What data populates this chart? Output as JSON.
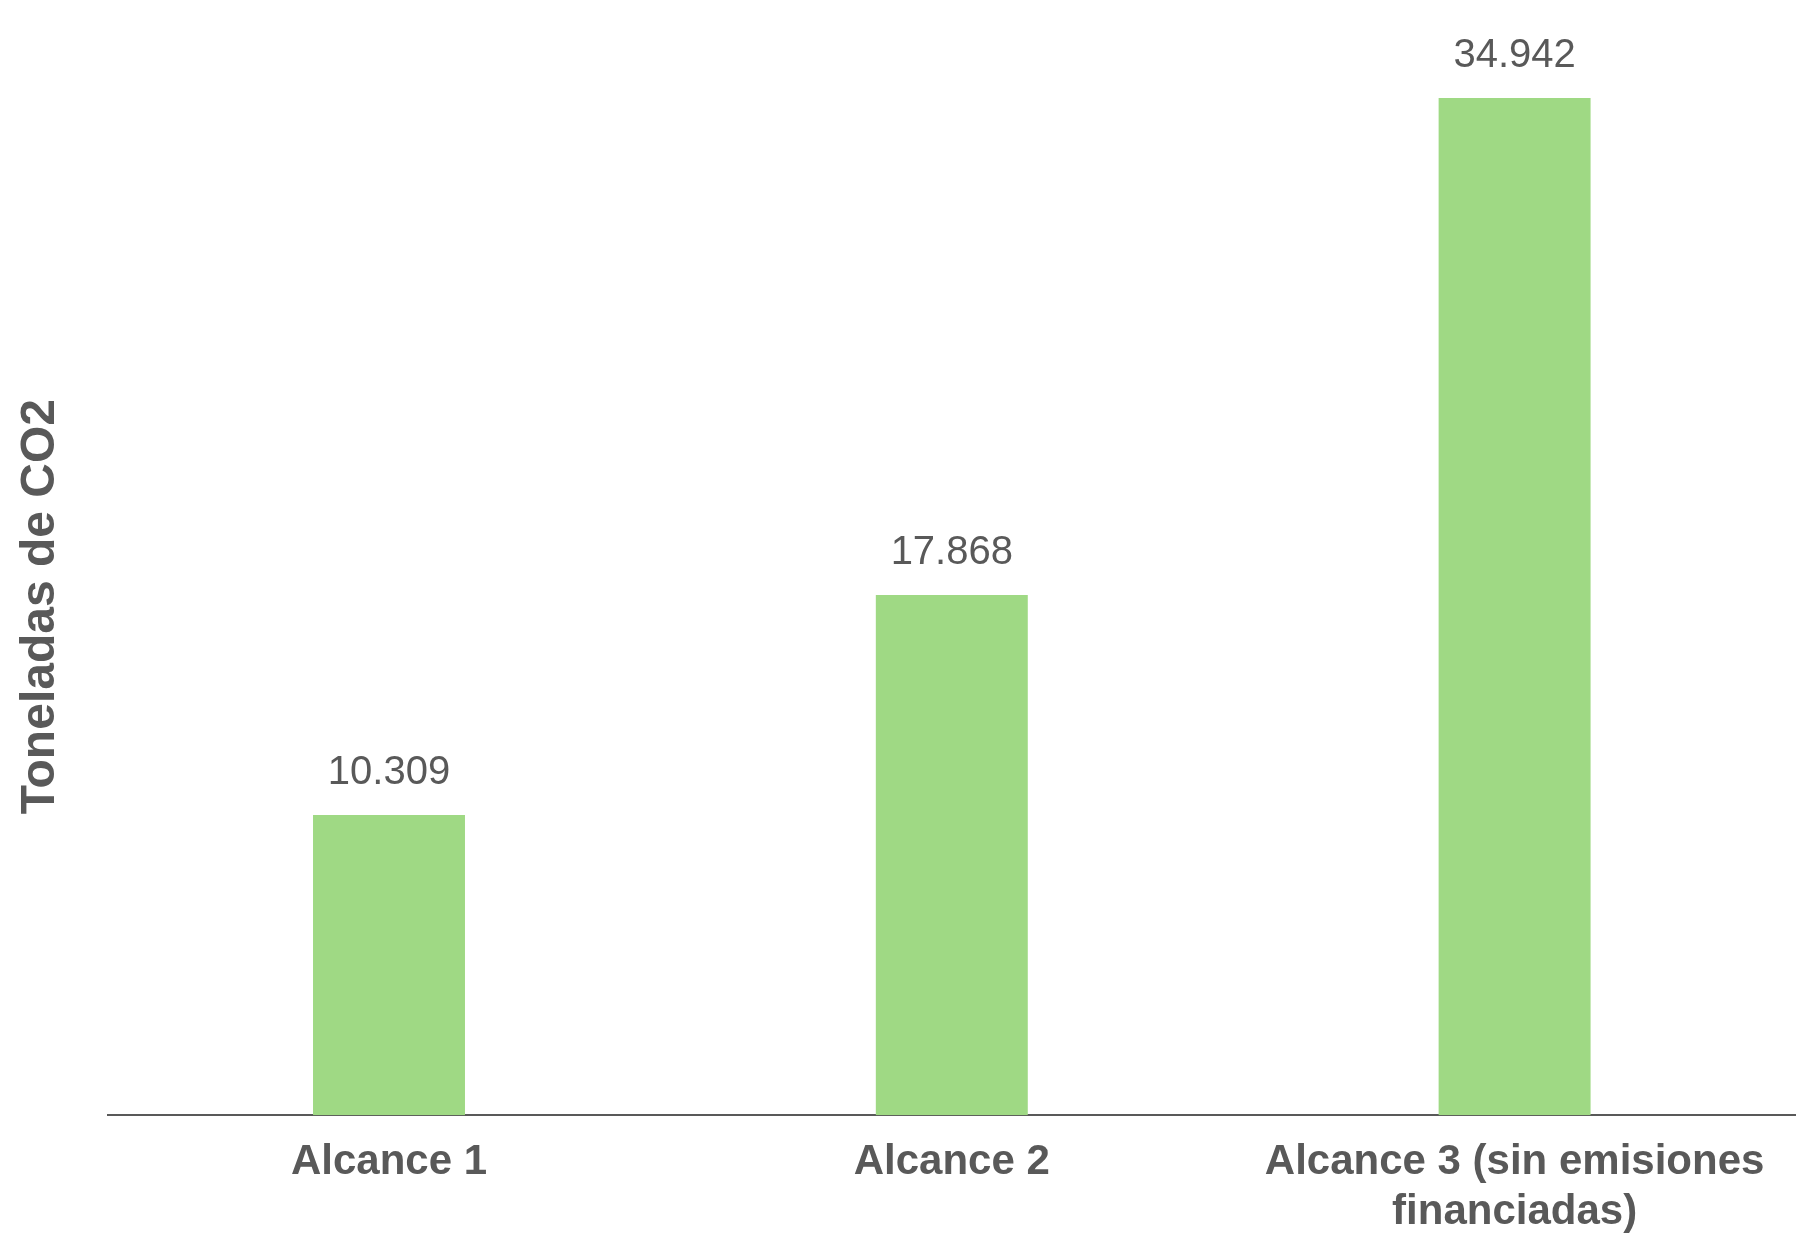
{
  "chart_data": {
    "type": "bar",
    "ylabel": "Toneladas de CO2",
    "categories": [
      "Alcance 1",
      "Alcance 2",
      "Alcance 3 (sin emisiones financiadas)"
    ],
    "values": [
      10309,
      17868,
      34942
    ],
    "value_labels": [
      "10.309",
      "17.868",
      "34.942"
    ],
    "color": "#9fd984",
    "grid": false,
    "legend": false
  }
}
